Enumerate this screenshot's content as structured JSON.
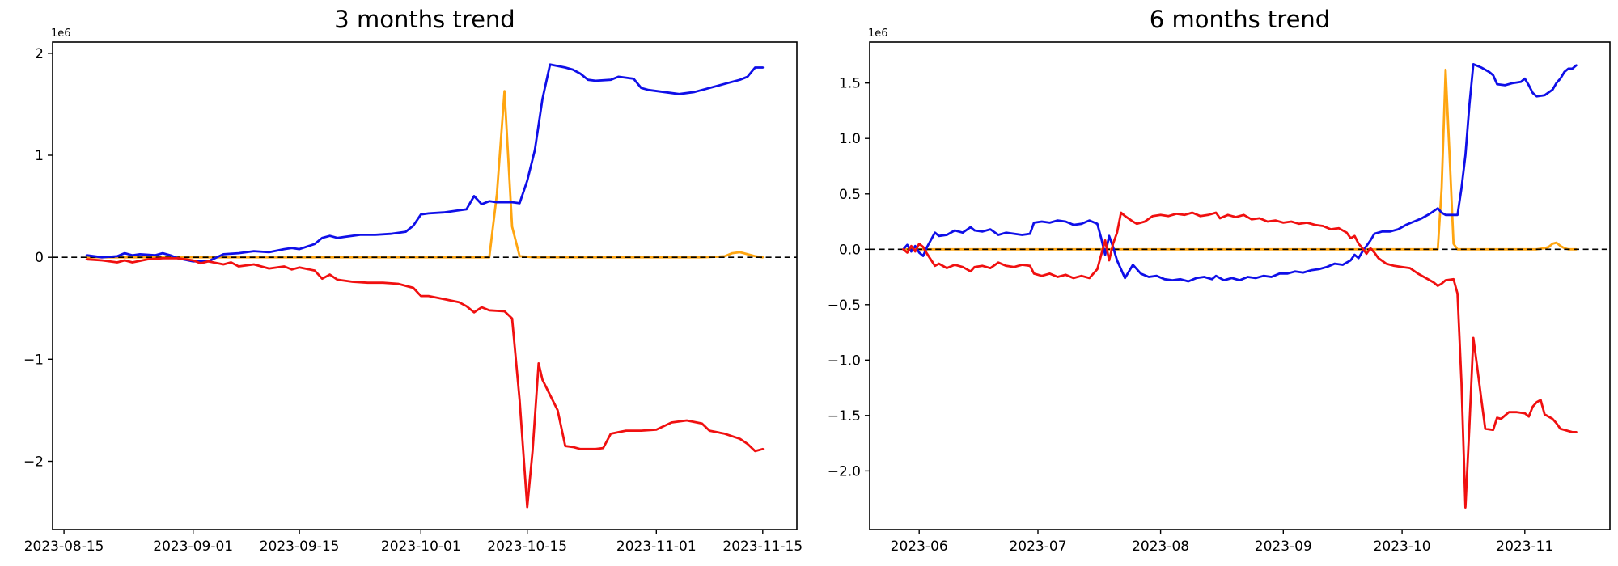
{
  "page": {
    "background": "#ffffff"
  },
  "colors": {
    "blue": "#0f0fe8",
    "red": "#f01010",
    "orange": "#ffa510",
    "zero_line": "#000000",
    "axis": "#000000"
  },
  "chart_data": [
    {
      "type": "line",
      "title": "3 months trend",
      "offset_label": "1e6",
      "value_unit": "1e6",
      "x_unit": "days since 2023-08-15",
      "xlim": [
        -1.5,
        96.5
      ],
      "ylim": [
        -2.67,
        2.11
      ],
      "grid": false,
      "legend": "none",
      "zero_line_dashed": true,
      "y_ticks": [
        {
          "label": "2",
          "v": 2
        },
        {
          "label": "1",
          "v": 1
        },
        {
          "label": "0",
          "v": 0
        },
        {
          "label": "−1",
          "v": -1
        },
        {
          "label": "−2",
          "v": -2
        }
      ],
      "x_ticks": [
        {
          "label": "2023-08-15",
          "d": 0
        },
        {
          "label": "2023-09-01",
          "d": 17
        },
        {
          "label": "2023-09-15",
          "d": 31
        },
        {
          "label": "2023-10-01",
          "d": 47
        },
        {
          "label": "2023-10-15",
          "d": 61
        },
        {
          "label": "2023-11-01",
          "d": 78
        },
        {
          "label": "2023-11-15",
          "d": 92
        }
      ],
      "series": [
        {
          "name": "orange",
          "color_key": "orange",
          "x": [
            3,
            5,
            7,
            9,
            11,
            13,
            15,
            17,
            19,
            21,
            23,
            25,
            27,
            29,
            31,
            33,
            35,
            37,
            39,
            41,
            43,
            45,
            47,
            49,
            51,
            53,
            55,
            56,
            57,
            58,
            59,
            60,
            62,
            64,
            66,
            68,
            70,
            72,
            74,
            76,
            78,
            80,
            82,
            84,
            86,
            87,
            88,
            89,
            90,
            91,
            92
          ],
          "y": [
            0,
            0,
            0,
            0,
            0,
            0,
            0,
            0,
            0,
            0,
            0,
            0,
            0,
            0,
            0,
            0,
            0,
            0,
            0,
            0,
            0,
            0,
            0,
            0,
            0,
            0,
            0,
            0,
            0.62,
            1.63,
            0.3,
            0.01,
            0,
            0,
            0,
            0,
            0,
            0,
            0,
            0,
            0,
            0,
            0,
            0,
            0.005,
            0.01,
            0.04,
            0.05,
            0.03,
            0.01,
            0
          ]
        },
        {
          "name": "blue",
          "color_key": "blue",
          "x": [
            3,
            5,
            7,
            8,
            9,
            10,
            12,
            13,
            14,
            15,
            17,
            19,
            21,
            23,
            25,
            27,
            29,
            30,
            31,
            33,
            34,
            35,
            36,
            37,
            39,
            41,
            43,
            45,
            46,
            47,
            48,
            50,
            52,
            53,
            54,
            55,
            56,
            57,
            59,
            60,
            61,
            62,
            63,
            64,
            66,
            67,
            68,
            69,
            70,
            72,
            73,
            75,
            76,
            77,
            79,
            81,
            83,
            85,
            87,
            89,
            90,
            91,
            92
          ],
          "y": [
            0.02,
            0.0,
            0.01,
            0.04,
            0.02,
            0.03,
            0.02,
            0.04,
            0.02,
            -0.01,
            -0.04,
            -0.04,
            0.03,
            0.04,
            0.06,
            0.05,
            0.08,
            0.09,
            0.08,
            0.13,
            0.19,
            0.21,
            0.19,
            0.2,
            0.22,
            0.22,
            0.23,
            0.25,
            0.31,
            0.42,
            0.43,
            0.44,
            0.46,
            0.47,
            0.6,
            0.52,
            0.55,
            0.54,
            0.54,
            0.53,
            0.75,
            1.05,
            1.55,
            1.89,
            1.86,
            1.84,
            1.8,
            1.74,
            1.73,
            1.74,
            1.77,
            1.75,
            1.66,
            1.64,
            1.62,
            1.6,
            1.62,
            1.66,
            1.7,
            1.74,
            1.77,
            1.86,
            1.86
          ]
        },
        {
          "name": "red",
          "color_key": "red",
          "x": [
            3,
            5,
            7,
            8,
            9,
            11,
            13,
            15,
            17,
            18,
            19,
            21,
            22,
            23,
            25,
            27,
            29,
            30,
            31,
            33,
            34,
            35,
            36,
            38,
            40,
            42,
            44,
            46,
            47,
            48,
            50,
            52,
            53,
            54,
            55,
            56,
            58,
            59,
            60,
            61,
            61.7,
            62.5,
            63,
            64,
            65,
            66,
            67,
            68,
            70,
            71,
            72,
            74,
            76,
            78,
            80,
            82,
            84,
            85,
            87,
            89,
            90,
            91,
            92
          ],
          "y": [
            -0.02,
            -0.03,
            -0.05,
            -0.03,
            -0.05,
            -0.02,
            -0.01,
            -0.01,
            -0.03,
            -0.06,
            -0.04,
            -0.07,
            -0.05,
            -0.09,
            -0.07,
            -0.11,
            -0.09,
            -0.12,
            -0.1,
            -0.13,
            -0.21,
            -0.17,
            -0.22,
            -0.24,
            -0.25,
            -0.25,
            -0.26,
            -0.3,
            -0.38,
            -0.38,
            -0.41,
            -0.44,
            -0.48,
            -0.54,
            -0.49,
            -0.52,
            -0.53,
            -0.6,
            -1.4,
            -2.45,
            -1.9,
            -1.04,
            -1.2,
            -1.35,
            -1.5,
            -1.85,
            -1.86,
            -1.88,
            -1.88,
            -1.87,
            -1.73,
            -1.7,
            -1.7,
            -1.69,
            -1.62,
            -1.6,
            -1.63,
            -1.7,
            -1.73,
            -1.78,
            -1.83,
            -1.9,
            -1.88
          ]
        }
      ]
    },
    {
      "type": "line",
      "title": "6 months trend",
      "offset_label": "1e6",
      "value_unit": "1e6",
      "x_unit": "days since 2023-06-01",
      "xlim": [
        -12.5,
        174.5
      ],
      "ylim": [
        -2.53,
        1.87
      ],
      "grid": false,
      "legend": "none",
      "zero_line_dashed": true,
      "y_ticks": [
        {
          "label": "1.5",
          "v": 1.5
        },
        {
          "label": "1.0",
          "v": 1.0
        },
        {
          "label": "0.5",
          "v": 0.5
        },
        {
          "label": "0.0",
          "v": 0.0
        },
        {
          "label": "−0.5",
          "v": -0.5
        },
        {
          "label": "−1.0",
          "v": -1.0
        },
        {
          "label": "−1.5",
          "v": -1.5
        },
        {
          "label": "−2.0",
          "v": -2.0
        }
      ],
      "x_ticks": [
        {
          "label": "2023-06",
          "d": 0
        },
        {
          "label": "2023-07",
          "d": 30
        },
        {
          "label": "2023-08",
          "d": 61
        },
        {
          "label": "2023-09",
          "d": 92
        },
        {
          "label": "2023-10",
          "d": 122
        },
        {
          "label": "2023-11",
          "d": 153
        }
      ],
      "series": [
        {
          "name": "orange",
          "color_key": "orange",
          "x": [
            -4,
            0,
            4,
            8,
            12,
            16,
            20,
            24,
            28,
            32,
            36,
            40,
            44,
            48,
            52,
            56,
            60,
            64,
            68,
            72,
            76,
            80,
            84,
            88,
            92,
            96,
            100,
            104,
            108,
            112,
            116,
            120,
            124,
            128,
            130,
            131,
            132,
            133,
            134,
            135,
            136,
            140,
            144,
            148,
            152,
            156,
            158,
            159,
            160,
            161,
            162,
            163,
            164,
            166
          ],
          "y": [
            0,
            0,
            0,
            0,
            0,
            0,
            0,
            0,
            0,
            0,
            0,
            0,
            0,
            0,
            0,
            0,
            0,
            0,
            0,
            0,
            0,
            0,
            0,
            0,
            0,
            0,
            0,
            0,
            0,
            0,
            0,
            0,
            0,
            0,
            0,
            0,
            0.55,
            1.62,
            0.85,
            0.05,
            0,
            0,
            0,
            0,
            0,
            0,
            0.01,
            0.02,
            0.05,
            0.06,
            0.03,
            0.01,
            0,
            0
          ]
        },
        {
          "name": "blue",
          "color_key": "blue",
          "x": [
            -4,
            -3,
            -2,
            -1,
            0,
            1,
            2,
            4,
            5,
            7,
            9,
            11,
            13,
            14,
            16,
            18,
            20,
            22,
            24,
            26,
            28,
            29,
            31,
            33,
            35,
            37,
            39,
            41,
            43,
            45,
            46,
            47,
            48,
            49,
            50,
            52,
            54,
            56,
            58,
            60,
            62,
            64,
            66,
            68,
            70,
            72,
            74,
            75,
            77,
            79,
            81,
            83,
            85,
            87,
            89,
            91,
            93,
            95,
            97,
            99,
            101,
            103,
            105,
            107,
            109,
            110,
            111,
            112,
            113,
            114,
            115,
            117,
            119,
            121,
            123,
            125,
            127,
            129,
            131,
            132,
            133,
            135,
            136,
            137,
            138,
            139,
            140,
            142,
            144,
            145,
            146,
            148,
            150,
            152,
            153,
            154,
            155,
            156,
            158,
            160,
            161,
            162,
            163,
            164,
            165,
            166
          ],
          "y": [
            0.0,
            0.04,
            -0.02,
            0.03,
            -0.03,
            -0.06,
            0.02,
            0.15,
            0.12,
            0.13,
            0.17,
            0.15,
            0.2,
            0.17,
            0.16,
            0.18,
            0.13,
            0.15,
            0.14,
            0.13,
            0.14,
            0.24,
            0.25,
            0.24,
            0.26,
            0.25,
            0.22,
            0.23,
            0.26,
            0.23,
            0.1,
            -0.05,
            0.12,
            0.02,
            -0.1,
            -0.26,
            -0.14,
            -0.22,
            -0.25,
            -0.24,
            -0.27,
            -0.28,
            -0.27,
            -0.29,
            -0.26,
            -0.25,
            -0.27,
            -0.24,
            -0.28,
            -0.26,
            -0.28,
            -0.25,
            -0.26,
            -0.24,
            -0.25,
            -0.22,
            -0.22,
            -0.2,
            -0.21,
            -0.19,
            -0.18,
            -0.16,
            -0.13,
            -0.14,
            -0.1,
            -0.05,
            -0.08,
            -0.02,
            0.03,
            0.08,
            0.14,
            0.16,
            0.16,
            0.18,
            0.22,
            0.25,
            0.28,
            0.32,
            0.37,
            0.33,
            0.31,
            0.31,
            0.31,
            0.55,
            0.85,
            1.3,
            1.67,
            1.64,
            1.6,
            1.57,
            1.49,
            1.48,
            1.5,
            1.51,
            1.54,
            1.48,
            1.41,
            1.38,
            1.39,
            1.44,
            1.5,
            1.54,
            1.6,
            1.63,
            1.63,
            1.66
          ]
        },
        {
          "name": "red",
          "color_key": "red",
          "x": [
            -4,
            -3,
            -2,
            -1,
            0,
            1,
            2,
            4,
            5,
            7,
            9,
            11,
            13,
            14,
            16,
            18,
            20,
            22,
            24,
            26,
            28,
            29,
            31,
            33,
            35,
            37,
            39,
            41,
            43,
            45,
            46,
            47,
            48,
            49,
            50,
            51,
            52,
            54,
            55,
            57,
            59,
            61,
            63,
            65,
            67,
            69,
            71,
            73,
            75,
            76,
            78,
            80,
            82,
            84,
            86,
            88,
            90,
            92,
            94,
            96,
            98,
            100,
            102,
            104,
            106,
            108,
            109,
            110,
            111,
            112,
            113,
            114,
            115,
            116,
            118,
            120,
            122,
            124,
            126,
            128,
            130,
            131,
            132,
            133,
            135,
            136,
            137,
            138,
            139,
            140,
            141,
            142,
            143,
            145,
            146,
            147,
            149,
            151,
            153,
            154,
            155,
            156,
            157,
            158,
            160,
            161,
            162,
            164,
            165,
            166
          ],
          "y": [
            0.0,
            -0.03,
            0.03,
            -0.02,
            0.05,
            0.02,
            -0.04,
            -0.15,
            -0.13,
            -0.17,
            -0.14,
            -0.16,
            -0.2,
            -0.16,
            -0.15,
            -0.17,
            -0.12,
            -0.15,
            -0.16,
            -0.14,
            -0.15,
            -0.22,
            -0.24,
            -0.22,
            -0.25,
            -0.23,
            -0.26,
            -0.24,
            -0.26,
            -0.18,
            -0.05,
            0.08,
            -0.1,
            0.05,
            0.15,
            0.33,
            0.3,
            0.25,
            0.23,
            0.25,
            0.3,
            0.31,
            0.3,
            0.32,
            0.31,
            0.33,
            0.3,
            0.31,
            0.33,
            0.28,
            0.31,
            0.29,
            0.31,
            0.27,
            0.28,
            0.25,
            0.26,
            0.24,
            0.25,
            0.23,
            0.24,
            0.22,
            0.21,
            0.18,
            0.19,
            0.15,
            0.1,
            0.12,
            0.05,
            0.01,
            -0.04,
            0.01,
            -0.03,
            -0.08,
            -0.13,
            -0.15,
            -0.16,
            -0.17,
            -0.22,
            -0.26,
            -0.3,
            -0.33,
            -0.31,
            -0.28,
            -0.27,
            -0.4,
            -1.2,
            -2.33,
            -1.6,
            -0.8,
            -1.07,
            -1.35,
            -1.62,
            -1.63,
            -1.52,
            -1.53,
            -1.47,
            -1.47,
            -1.48,
            -1.51,
            -1.42,
            -1.38,
            -1.36,
            -1.49,
            -1.53,
            -1.57,
            -1.62,
            -1.64,
            -1.65,
            -1.65
          ]
        }
      ]
    }
  ]
}
